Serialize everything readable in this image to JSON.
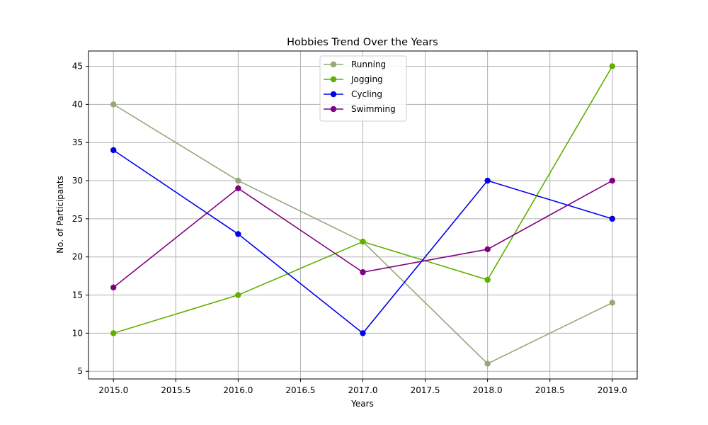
{
  "chart_data": {
    "type": "line",
    "title": "Hobbies Trend Over the Years",
    "xlabel": "Years",
    "ylabel": "No. of Participants",
    "x": [
      2015,
      2016,
      2017,
      2018,
      2019
    ],
    "xlim": [
      2014.8,
      2019.2
    ],
    "ylim": [
      4,
      47
    ],
    "xticks": [
      "2015.0",
      "2015.5",
      "2016.0",
      "2016.5",
      "2017.0",
      "2017.5",
      "2018.0",
      "2018.5",
      "2019.0"
    ],
    "yticks": [
      "5",
      "10",
      "15",
      "20",
      "25",
      "30",
      "35",
      "40",
      "45"
    ],
    "grid": true,
    "legend_position": "upper center",
    "series": [
      {
        "name": "Running",
        "color": "#94a878",
        "values": [
          40,
          30,
          22,
          6,
          14
        ]
      },
      {
        "name": "Jogging",
        "color": "#5fb000",
        "values": [
          10,
          15,
          22,
          17,
          45
        ]
      },
      {
        "name": "Cycling",
        "color": "#0000ee",
        "values": [
          34,
          23,
          10,
          30,
          25
        ]
      },
      {
        "name": "Swimming",
        "color": "#800080",
        "values": [
          16,
          29,
          18,
          21,
          30
        ]
      }
    ]
  }
}
